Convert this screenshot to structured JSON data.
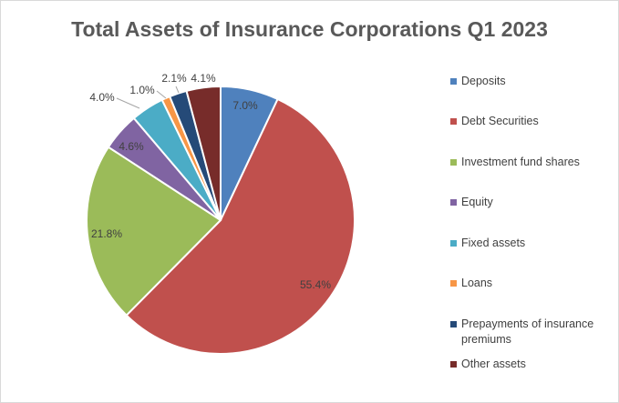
{
  "chart_data": {
    "type": "pie",
    "title": "Total Assets of Insurance Corporations Q1 2023",
    "categories": [
      "Deposits",
      "Debt Securities",
      "Investment fund shares",
      "Equity",
      "Fixed assets",
      "Loans",
      "Prepayments of insurance premiums",
      "Other assets"
    ],
    "values": [
      7.0,
      55.4,
      21.8,
      4.6,
      4.0,
      1.0,
      2.1,
      4.1
    ],
    "value_labels": [
      "7.0%",
      "55.4%",
      "21.8%",
      "4.6%",
      "4.0%",
      "1.0%",
      "2.1%",
      "4.1%"
    ],
    "colors": [
      "#4f81bd",
      "#c0504d",
      "#9bbb59",
      "#8064a2",
      "#4bacc6",
      "#f79646",
      "#254a78",
      "#772c2a"
    ]
  }
}
